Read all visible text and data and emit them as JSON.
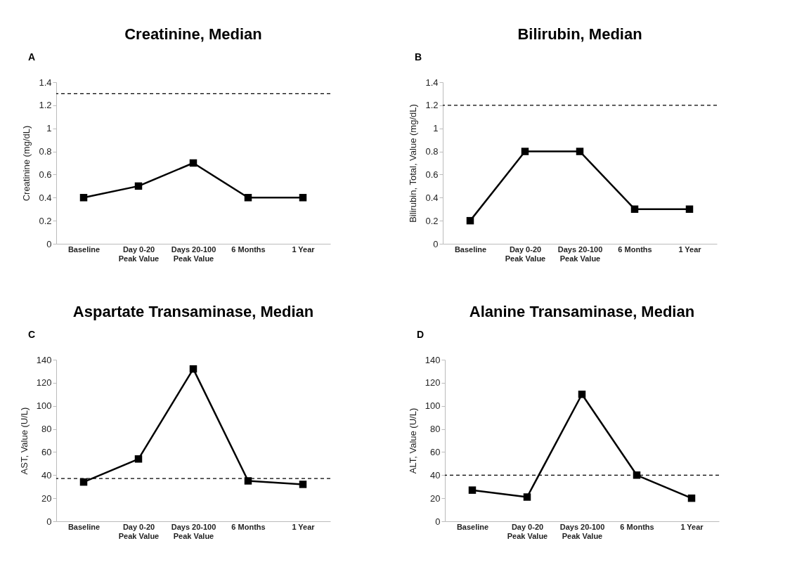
{
  "chart_data": [
    {
      "type": "line",
      "title": "Creatinine, Median",
      "ylabel": "Creatinine (mg/dL)",
      "annotations": [
        "A"
      ],
      "categories": [
        "Baseline",
        "Day 0-20\nPeak Value",
        "Days 20-100\nPeak Value",
        "6 Months",
        "1 Year"
      ],
      "series": [
        {
          "color": "#000000",
          "values": [
            0.4,
            0.5,
            0.7,
            0.4,
            0.4
          ]
        }
      ],
      "ylim": [
        0,
        1.4
      ],
      "yticks": [
        0,
        {
          "value": 0.2,
          "label": "0.2"
        },
        {
          "value": 0.4,
          "label": "0.4"
        },
        {
          "value": 0.6,
          "label": "0.6"
        },
        {
          "value": 0.8,
          "label": "0.8"
        },
        1,
        {
          "value": 1.2,
          "label": "1.2"
        },
        {
          "value": 1.4,
          "label": "1.4"
        }
      ],
      "marker": "square",
      "ref_lines": [
        {
          "axis": "y",
          "value": 1.3,
          "color": "#000000",
          "line_style": "dashed"
        }
      ]
    },
    {
      "type": "line",
      "title": "Bilirubin, Median",
      "ylabel": "Bilirubin, Total, Value (mg/dL)",
      "annotations": [
        "B"
      ],
      "categories": [
        "Baseline",
        "Day 0-20\nPeak Value",
        "Days 20-100\nPeak Value",
        "6 Months",
        "1 Year"
      ],
      "series": [
        {
          "color": "#000000",
          "values": [
            0.2,
            0.8,
            0.8,
            0.3,
            0.3
          ]
        }
      ],
      "ylim": [
        0,
        1.4
      ],
      "yticks": [
        0,
        {
          "value": 0.2,
          "label": "0.2"
        },
        {
          "value": 0.4,
          "label": "0.4"
        },
        {
          "value": 0.6,
          "label": "0.6"
        },
        {
          "value": 0.8,
          "label": "0.8"
        },
        1,
        {
          "value": 1.2,
          "label": "1.2"
        },
        {
          "value": 1.4,
          "label": "1.4"
        }
      ],
      "marker": "square",
      "ref_lines": [
        {
          "axis": "y",
          "value": 1.2,
          "color": "#000000",
          "line_style": "dashed"
        }
      ]
    },
    {
      "type": "line",
      "title": "Aspartate Transaminase, Median",
      "ylabel": "AST, Value (U/L)",
      "annotations": [
        "C"
      ],
      "categories": [
        "Baseline",
        "Day 0-20\nPeak Value",
        "Days 20-100\nPeak Value",
        "6 Months",
        "1 Year"
      ],
      "series": [
        {
          "color": "#000000",
          "values": [
            34,
            54,
            132,
            35,
            32
          ]
        }
      ],
      "ylim": [
        0,
        140
      ],
      "yticks": [
        0,
        20,
        40,
        60,
        80,
        100,
        120,
        140
      ],
      "marker": "square",
      "ref_lines": [
        {
          "axis": "y",
          "value": 37,
          "color": "#000000",
          "line_style": "dashed"
        }
      ]
    },
    {
      "type": "line",
      "title": "Alanine Transaminase, Median",
      "ylabel": "ALT, Value (U/L)",
      "annotations": [
        "D"
      ],
      "categories": [
        "Baseline",
        "Day 0-20\nPeak Value",
        "Days 20-100\nPeak Value",
        "6 Months",
        "1 Year"
      ],
      "series": [
        {
          "color": "#000000",
          "values": [
            27,
            21,
            110,
            40,
            20
          ]
        }
      ],
      "ylim": [
        0,
        140
      ],
      "yticks": [
        0,
        20,
        40,
        60,
        80,
        100,
        120,
        140
      ],
      "marker": "square",
      "ref_lines": [
        {
          "axis": "y",
          "value": 40,
          "color": "#000000",
          "line_style": "dashed"
        }
      ]
    }
  ]
}
